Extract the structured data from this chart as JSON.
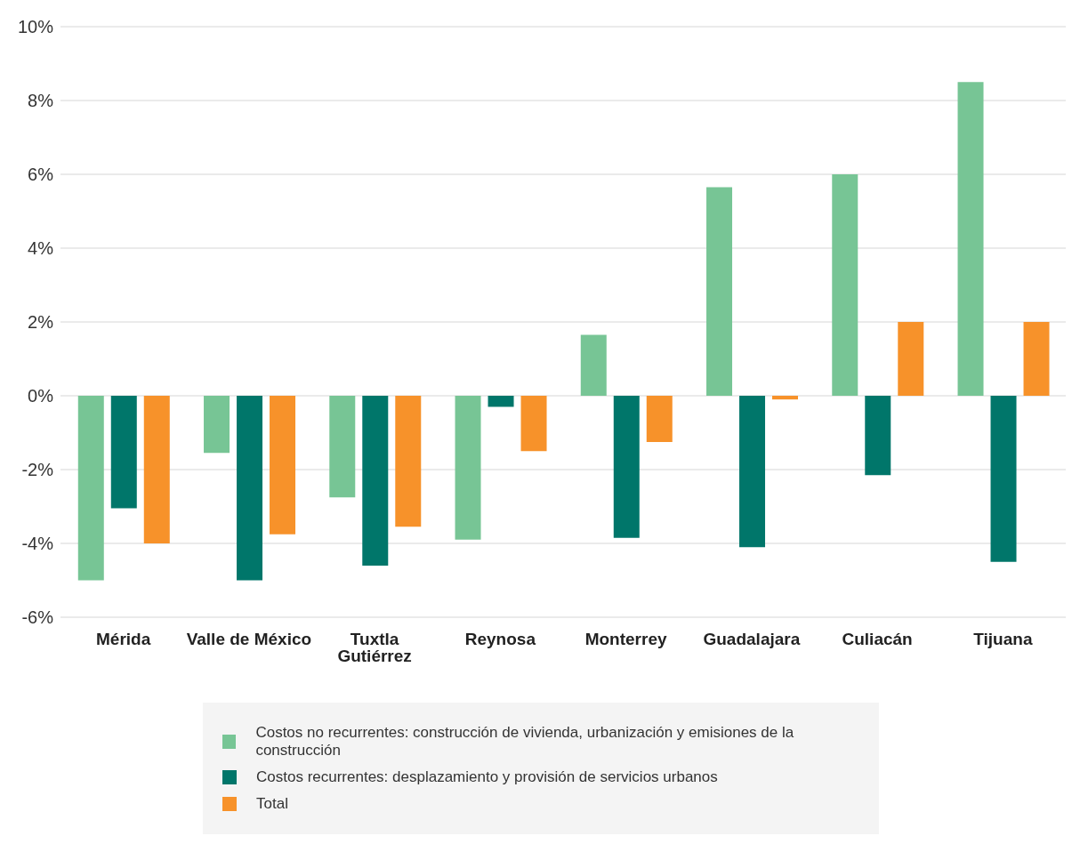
{
  "chart_data": {
    "type": "bar",
    "categories": [
      "Mérida",
      "Valle de México",
      "Tuxtla Gutiérrez",
      "Reynosa",
      "Monterrey",
      "Guadalajara",
      "Culiacán",
      "Tijuana"
    ],
    "series": [
      {
        "name": "Costos no recurrentes: construcción de vivienda, urbanización y emisiones de la construcción",
        "color": "#77c595",
        "values": [
          -5.0,
          -1.55,
          -2.75,
          -3.9,
          1.65,
          5.65,
          6.0,
          8.5
        ]
      },
      {
        "name": "Costos recurrentes: desplazamiento y provisión de servicios urbanos",
        "color": "#00766a",
        "values": [
          -3.05,
          -5.0,
          -4.6,
          -0.3,
          -3.85,
          -4.1,
          -2.15,
          -4.5
        ]
      },
      {
        "name": "Total",
        "color": "#f7922a",
        "values": [
          -4.0,
          -3.75,
          -3.55,
          -1.5,
          -1.25,
          -0.1,
          2.0,
          2.0
        ]
      }
    ],
    "ylim": [
      -6,
      10
    ],
    "yticks": [
      {
        "value": -6,
        "label": "-6%"
      },
      {
        "value": -4,
        "label": "-4%"
      },
      {
        "value": -2,
        "label": "-2%"
      },
      {
        "value": 0,
        "label": "0%"
      },
      {
        "value": 2,
        "label": "2%"
      },
      {
        "value": 4,
        "label": "4%"
      },
      {
        "value": 6,
        "label": "6%"
      },
      {
        "value": 8,
        "label": "8%"
      },
      {
        "value": 10,
        "label": "10%"
      }
    ],
    "grid": "y",
    "legend": "bottom"
  }
}
